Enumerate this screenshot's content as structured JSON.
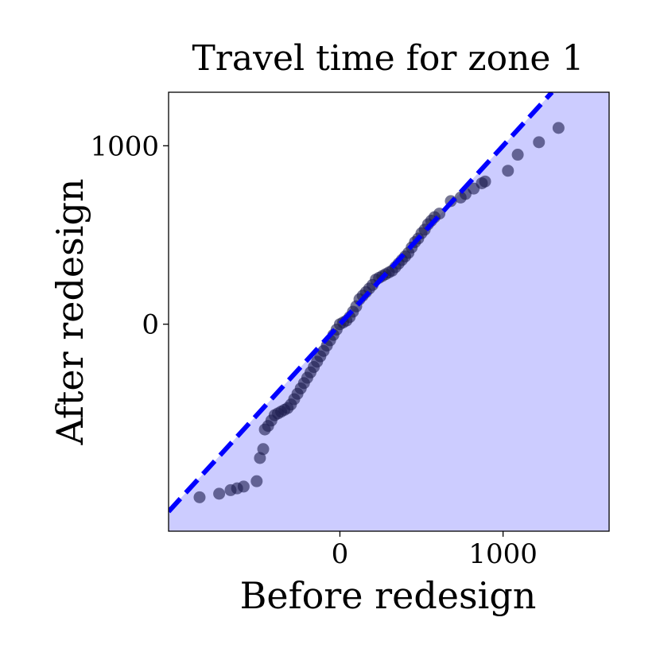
{
  "chart_data": {
    "type": "scatter",
    "title": "Travel time for zone 1",
    "xlabel": "Before redesign",
    "ylabel": "After redesign",
    "xlim": [
      -1050,
      1650
    ],
    "ylim": [
      -1160,
      1300
    ],
    "xticks": [
      0,
      1000
    ],
    "yticks": [
      0,
      1000
    ],
    "xtick_labels": [
      "0",
      "1000"
    ],
    "ytick_labels": [
      "0",
      "1000"
    ],
    "grid": false,
    "reference_line": {
      "slope": 1,
      "intercept": 0,
      "style": "dashed",
      "color": "#0000ff"
    },
    "shaded_region": "below diagonal",
    "colors": {
      "fill": "#ccccff",
      "points": "#1a1a4d",
      "line": "#0000ff"
    },
    "points": [
      [
        -860,
        -970
      ],
      [
        -740,
        -950
      ],
      [
        -670,
        -930
      ],
      [
        -630,
        -920
      ],
      [
        -590,
        -910
      ],
      [
        -510,
        -880
      ],
      [
        -490,
        -750
      ],
      [
        -470,
        -700
      ],
      [
        -460,
        -590
      ],
      [
        -440,
        -570
      ],
      [
        -420,
        -540
      ],
      [
        -400,
        -510
      ],
      [
        -380,
        -500
      ],
      [
        -360,
        -490
      ],
      [
        -340,
        -480
      ],
      [
        -320,
        -470
      ],
      [
        -300,
        -450
      ],
      [
        -280,
        -420
      ],
      [
        -260,
        -390
      ],
      [
        -240,
        -360
      ],
      [
        -220,
        -330
      ],
      [
        -200,
        -300
      ],
      [
        -180,
        -270
      ],
      [
        -160,
        -240
      ],
      [
        -140,
        -210
      ],
      [
        -120,
        -180
      ],
      [
        -100,
        -150
      ],
      [
        -80,
        -120
      ],
      [
        -60,
        -90
      ],
      [
        -40,
        -60
      ],
      [
        -20,
        -30
      ],
      [
        0,
        0
      ],
      [
        20,
        10
      ],
      [
        40,
        20
      ],
      [
        60,
        40
      ],
      [
        80,
        70
      ],
      [
        100,
        100
      ],
      [
        120,
        140
      ],
      [
        140,
        160
      ],
      [
        160,
        180
      ],
      [
        180,
        200
      ],
      [
        200,
        220
      ],
      [
        220,
        250
      ],
      [
        240,
        260
      ],
      [
        260,
        270
      ],
      [
        280,
        280
      ],
      [
        300,
        290
      ],
      [
        320,
        300
      ],
      [
        340,
        320
      ],
      [
        360,
        340
      ],
      [
        380,
        360
      ],
      [
        400,
        380
      ],
      [
        420,
        400
      ],
      [
        440,
        430
      ],
      [
        460,
        460
      ],
      [
        480,
        480
      ],
      [
        500,
        510
      ],
      [
        520,
        530
      ],
      [
        540,
        560
      ],
      [
        560,
        580
      ],
      [
        580,
        600
      ],
      [
        610,
        620
      ],
      [
        680,
        690
      ],
      [
        740,
        710
      ],
      [
        770,
        730
      ],
      [
        820,
        760
      ],
      [
        870,
        790
      ],
      [
        890,
        800
      ],
      [
        1030,
        860
      ],
      [
        1090,
        950
      ],
      [
        1220,
        1020
      ],
      [
        1340,
        1100
      ]
    ]
  }
}
